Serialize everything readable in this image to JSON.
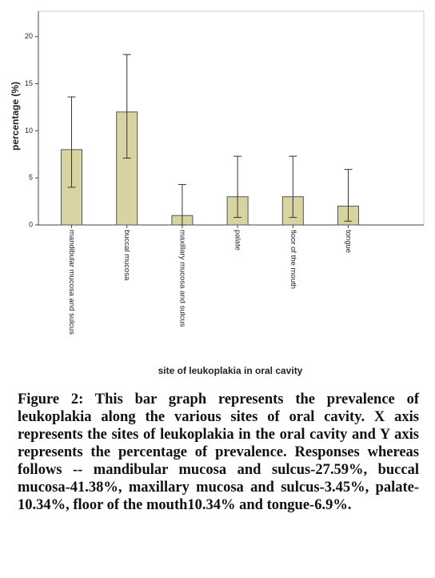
{
  "chart_data": {
    "type": "bar",
    "y_label": "percentage (%)",
    "x_label": "site of leukoplakia in oral cavity",
    "categories": [
      "mandibular mucosa and sulcus",
      "buccal mucosa",
      "maxillary mucosa and sulcus",
      "palate",
      "floor of the mouth",
      "tongue"
    ],
    "values": [
      8,
      12,
      1,
      3,
      3,
      2
    ],
    "ci_lower": [
      4.0,
      7.1,
      0.0,
      0.8,
      0.8,
      0.4
    ],
    "ci_upper": [
      13.6,
      18.1,
      4.3,
      7.3,
      7.3,
      5.9
    ],
    "color": "#d8d4a2",
    "ylim": [
      0,
      22.7
    ],
    "yticks": [
      0,
      5,
      10,
      15,
      20
    ],
    "grid": false,
    "caption": "Figure 2: This bar graph represents the prevalence of leukoplakia along the various sites of oral cavity. X axis represents the sites of leukoplakia in the oral cavity and Y axis represents the percentage of prevalence. Responses whereas follows -- mandibular mucosa and sulcus-27.59%, buccal mucosa-41.38%, maxillary mucosa and sulcus-3.45%, palate-10.34%, floor of the mouth10.34% and tongue-6.9%."
  }
}
